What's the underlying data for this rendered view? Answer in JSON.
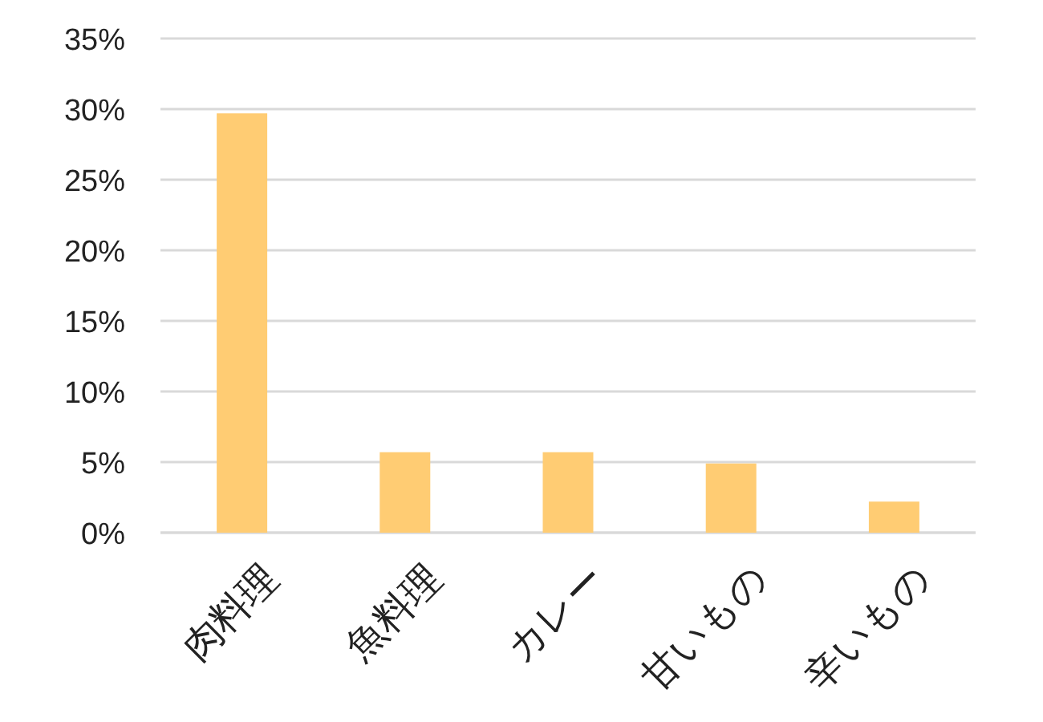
{
  "chart_data": {
    "type": "bar",
    "categories": [
      "肉料理",
      "魚料理",
      "カレー",
      "甘いもの",
      "辛いもの"
    ],
    "values": [
      29.7,
      5.7,
      5.7,
      4.9,
      2.2
    ],
    "color": "#ffcc73",
    "ylim": [
      0,
      35
    ],
    "yticks": [
      {
        "value": 0,
        "label": "0%"
      },
      {
        "value": 5,
        "label": "5%"
      },
      {
        "value": 10,
        "label": "10%"
      },
      {
        "value": 15,
        "label": "15%"
      },
      {
        "value": 20,
        "label": "20%"
      },
      {
        "value": 25,
        "label": "25%"
      },
      {
        "value": 30,
        "label": "30%"
      },
      {
        "value": 35,
        "label": "35%"
      }
    ],
    "grid": "y"
  }
}
